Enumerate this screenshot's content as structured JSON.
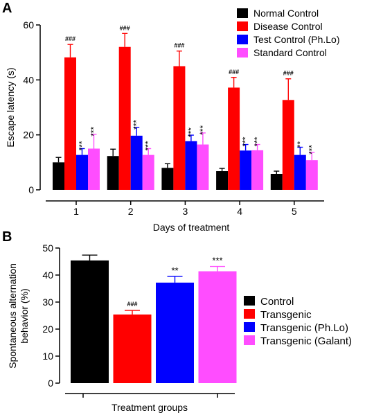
{
  "chart_data": [
    {
      "panel": "A",
      "type": "bar",
      "xlabel": "Days of treatment",
      "ylabel": "Escape latency (s)",
      "ylim": [
        0,
        60
      ],
      "yticks": [
        "0",
        "20",
        "40",
        "60"
      ],
      "categories": [
        "1",
        "2",
        "3",
        "4",
        "5"
      ],
      "series": [
        {
          "name": "Normal Control",
          "color": "#000000",
          "values": [
            10,
            12.3,
            8,
            6.8,
            5.8
          ],
          "errors": [
            1.8,
            2.5,
            1.5,
            1.0,
            1.0
          ],
          "annotations": [
            "",
            "",
            "",
            "",
            ""
          ]
        },
        {
          "name": "Disease Control",
          "color": "#ff0000",
          "values": [
            48.2,
            52,
            45,
            37.2,
            32.7
          ],
          "errors": [
            4.7,
            4.9,
            5.5,
            3.7,
            7.7
          ],
          "annotations": [
            "###",
            "###",
            "###",
            "###",
            "###"
          ]
        },
        {
          "name": "Test Control (Ph.Lo)",
          "color": "#0000ff",
          "values": [
            12.7,
            19.7,
            17.7,
            14.3,
            12.7
          ],
          "errors": [
            2.3,
            3.0,
            2.2,
            2.2,
            2.8
          ],
          "annotations": [
            "***",
            "***",
            "***",
            "***",
            "**"
          ]
        },
        {
          "name": "Standard Control",
          "color": "#ff4dff",
          "values": [
            15,
            12.7,
            16.5,
            14.4,
            10.8
          ],
          "errors": [
            5.2,
            2.3,
            4.2,
            2.1,
            2.8
          ],
          "annotations": [
            "***",
            "***",
            "***",
            "***",
            "***"
          ]
        }
      ],
      "legend": "top-right"
    },
    {
      "panel": "B",
      "type": "bar",
      "xlabel": "Treatment groups",
      "ylabel": "Spontaneous alternation behavior (%)",
      "ylim": [
        0,
        50
      ],
      "yticks": [
        "0",
        "10",
        "20",
        "30",
        "40",
        "50"
      ],
      "categories": [
        "Control",
        "Transgenic",
        "Transgenic (Ph.Lo)",
        "Transgenic (Galant)"
      ],
      "values": [
        45.4,
        25.4,
        37.2,
        41.4
      ],
      "errors": [
        2.0,
        1.5,
        2.3,
        1.8
      ],
      "colors": [
        "#000000",
        "#ff0000",
        "#0000ff",
        "#ff4dff"
      ],
      "annotations": [
        "",
        "###",
        "**",
        "***"
      ],
      "legend": "right"
    }
  ]
}
